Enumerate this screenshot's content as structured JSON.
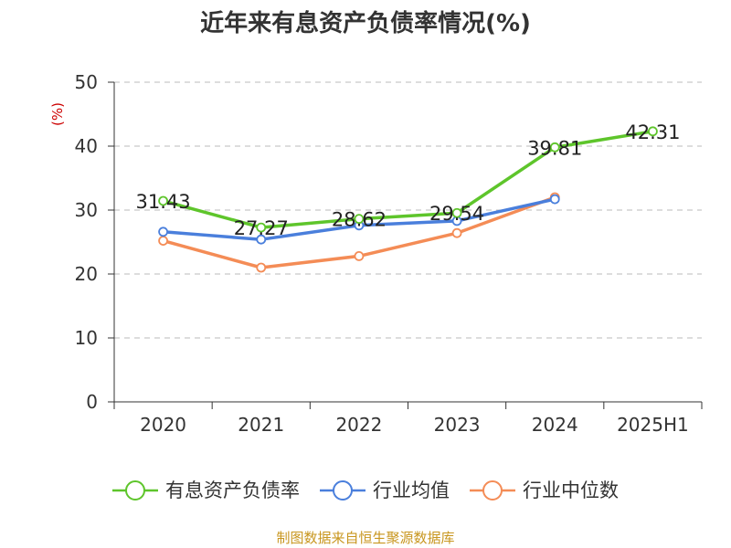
{
  "title": "近年来有息资产负债率情况(%)",
  "source": "制图数据来自恒生聚源数据库",
  "chart_data": {
    "type": "line",
    "title": "近年来有息资产负债率情况(%)",
    "xlabel": "",
    "ylabel": "(%)",
    "ylim": [
      0,
      50
    ],
    "yticks": [
      0,
      10,
      20,
      30,
      40,
      50
    ],
    "grid": true,
    "legend_position": "bottom",
    "categories": [
      "2020",
      "2021",
      "2022",
      "2023",
      "2024",
      "2025H1"
    ],
    "series": [
      {
        "name": "有息资产负债率",
        "color": "#5ec52b",
        "values": [
          31.43,
          27.27,
          28.62,
          29.54,
          39.81,
          42.31
        ],
        "labels": [
          "31.43",
          "27.27",
          "28.62",
          "29.54",
          "39.81",
          "42.31"
        ]
      },
      {
        "name": "行业均值",
        "color": "#4a7fdc",
        "values": [
          26.6,
          25.4,
          27.6,
          28.3,
          31.7,
          null
        ]
      },
      {
        "name": "行业中位数",
        "color": "#f48c56",
        "values": [
          25.2,
          21.0,
          22.8,
          26.4,
          32.0,
          null
        ]
      }
    ]
  }
}
